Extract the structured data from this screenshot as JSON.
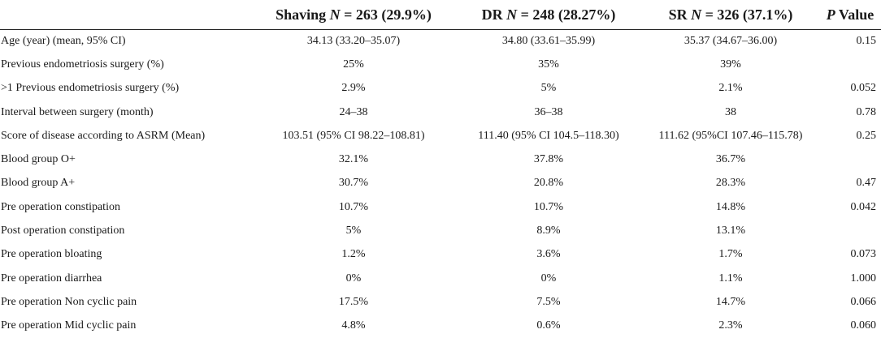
{
  "header": {
    "col0": "",
    "col1_name": "Shaving",
    "col1_n": "N",
    "col1_rest": " = 263 (29.9%)",
    "col2_name": "DR",
    "col2_n": "N",
    "col2_rest": " = 248 (28.27%)",
    "col3_name": "SR",
    "col3_n": "N",
    "col3_rest": " = 326 (37.1%)",
    "col4_p": "P",
    "col4_rest": " Value"
  },
  "rows": [
    {
      "label": "Age (year) (mean, 95% CI)",
      "shaving": "34.13 (33.20–35.07)",
      "dr": "34.80 (33.61–35.99)",
      "sr": "35.37 (34.67–36.00)",
      "p": "0.15"
    },
    {
      "label": "Previous endometriosis surgery (%)",
      "shaving": "25%",
      "dr": "35%",
      "sr": "39%",
      "p": ""
    },
    {
      "label": ">1 Previous endometriosis surgery (%)",
      "shaving": "2.9%",
      "dr": "5%",
      "sr": "2.1%",
      "p": "0.052"
    },
    {
      "label": "Interval between surgery (month)",
      "shaving": "24–38",
      "dr": "36–38",
      "sr": "38",
      "p": "0.78"
    },
    {
      "label": "Score of disease according to ASRM (Mean)",
      "shaving": "103.51 (95% CI 98.22–108.81)",
      "dr": "111.40 (95% CI 104.5–118.30)",
      "sr": "111.62 (95%CI 107.46–115.78)",
      "p": "0.25"
    },
    {
      "label": "Blood group O+",
      "shaving": "32.1%",
      "dr": "37.8%",
      "sr": "36.7%",
      "p": ""
    },
    {
      "label": "Blood group A+",
      "shaving": "30.7%",
      "dr": "20.8%",
      "sr": "28.3%",
      "p": "0.47"
    },
    {
      "label": "Pre operation constipation",
      "shaving": "10.7%",
      "dr": "10.7%",
      "sr": "14.8%",
      "p": "0.042"
    },
    {
      "label": "Post operation constipation",
      "shaving": "5%",
      "dr": "8.9%",
      "sr": "13.1%",
      "p": ""
    },
    {
      "label": "Pre operation bloating",
      "shaving": "1.2%",
      "dr": "3.6%",
      "sr": "1.7%",
      "p": "0.073"
    },
    {
      "label": "Pre operation diarrhea",
      "shaving": "0%",
      "dr": "0%",
      "sr": "1.1%",
      "p": "1.000"
    },
    {
      "label": "Pre operation Non cyclic pain",
      "shaving": "17.5%",
      "dr": "7.5%",
      "sr": "14.7%",
      "p": "0.066"
    },
    {
      "label": "Pre operation Mid cyclic pain",
      "shaving": "4.8%",
      "dr": "0.6%",
      "sr": "2.3%",
      "p": "0.060"
    }
  ]
}
